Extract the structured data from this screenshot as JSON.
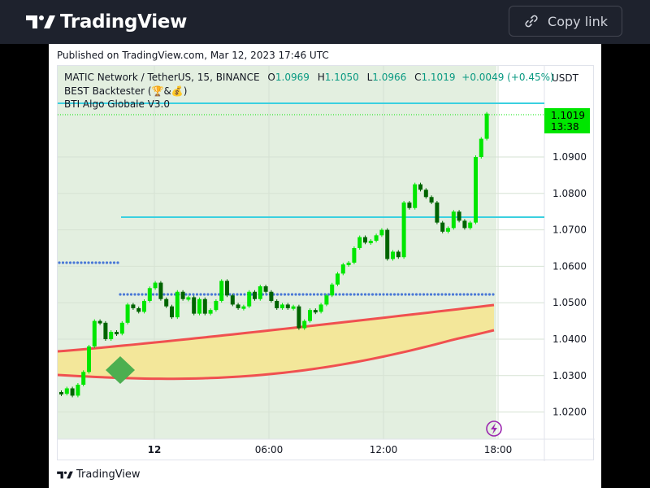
{
  "header": {
    "brand": "TradingView",
    "copy_link_label": "Copy link"
  },
  "published": "Published on TradingView.com, Mar 12, 2023 17:46 UTC",
  "legend": {
    "symbol": "MATIC Network / TetherUS, 15, BINANCE",
    "o_label": "O",
    "o_value": "1.0969",
    "h_label": "H",
    "h_value": "1.1050",
    "l_label": "L",
    "l_value": "1.0966",
    "c_label": "C",
    "c_value": "1.1019",
    "change": "+0.0049 (+0.45%)",
    "indicator_1": "BEST Backtester (🏆&💰)",
    "indicator_2": "BTI Algo Globale V3.0"
  },
  "price_axis": {
    "currency": "USDT",
    "last_price": "1.1019",
    "countdown": "13:38",
    "ticks": [
      "1.0900",
      "1.0800",
      "1.0700",
      "1.0600",
      "1.0500",
      "1.0400",
      "1.0300",
      "1.0200"
    ]
  },
  "time_axis": {
    "ticks": [
      "12",
      "06:00",
      "12:00",
      "18:00"
    ]
  },
  "footer": {
    "brand": "TradingView"
  },
  "colors": {
    "up": "#00e600",
    "down": "#006400",
    "background_zone": "#e3efe0",
    "hline": "#3ad0e0",
    "dots": "#4a78d6",
    "ribbon_fill": "#f3e79a",
    "ribbon_line": "#f05050",
    "signal": "#4caf50",
    "last_price_label": "#00e600"
  }
}
